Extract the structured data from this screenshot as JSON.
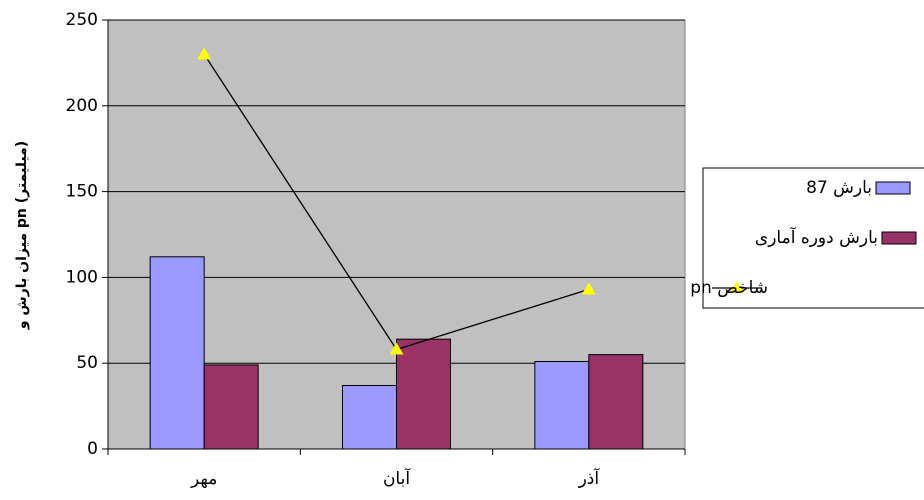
{
  "chart_data": {
    "type": "bar-line",
    "ylabel": "میزان بارش و pn (میلیمتر)",
    "categories": [
      "مهر",
      "آبان",
      "آذر"
    ],
    "series": [
      {
        "name": "بارش 87",
        "color": "#9999ff",
        "kind": "bar",
        "values": [
          112,
          37,
          51
        ]
      },
      {
        "name": "بارش دوره آماری",
        "color": "#993366",
        "kind": "bar",
        "values": [
          49,
          64,
          55
        ]
      },
      {
        "name": "شاخص pn",
        "color": "#000000",
        "marker_color": "#ffff00",
        "kind": "line",
        "values": [
          230,
          58,
          93
        ]
      }
    ],
    "ylim": [
      0,
      250
    ],
    "yticks": [
      0,
      50,
      100,
      150,
      200,
      250
    ],
    "grid": true,
    "legend": "right"
  }
}
